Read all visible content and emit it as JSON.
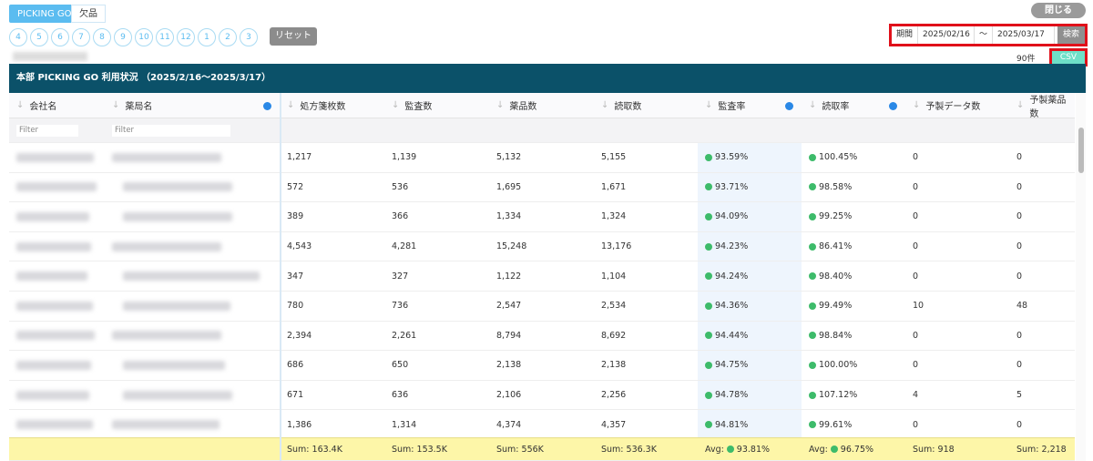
{
  "tabs": [
    {
      "label": "PICKING GO"
    },
    {
      "label": "欠品"
    }
  ],
  "months": [
    "4",
    "5",
    "6",
    "7",
    "8",
    "9",
    "10",
    "11",
    "12",
    "1",
    "2",
    "3"
  ],
  "reset_label": "リセット",
  "close_label": "閉じる",
  "period": {
    "label": "期間",
    "from": "2025/02/16",
    "sep": "〜",
    "to": "2025/03/17",
    "search_label": "検索"
  },
  "count": "90件",
  "csv_label": "CSV",
  "title": "本部 PICKING GO 利用状況 （2025/2/16〜2025/3/17）",
  "columns": [
    "会社名",
    "薬局名",
    "処方箋枚数",
    "監査数",
    "薬品数",
    "読取数",
    "監査率",
    "読取率",
    "予製データ数",
    "予製薬品数"
  ],
  "filter_placeholder": "Filter",
  "rows": [
    [
      "1,217",
      "1,139",
      "5,132",
      "5,155",
      "93.59%",
      "100.45%",
      "0",
      "0"
    ],
    [
      "572",
      "536",
      "1,695",
      "1,671",
      "93.71%",
      "98.58%",
      "0",
      "0"
    ],
    [
      "389",
      "366",
      "1,334",
      "1,324",
      "94.09%",
      "99.25%",
      "0",
      "0"
    ],
    [
      "4,543",
      "4,281",
      "15,248",
      "13,176",
      "94.23%",
      "86.41%",
      "0",
      "0"
    ],
    [
      "347",
      "327",
      "1,122",
      "1,104",
      "94.24%",
      "98.40%",
      "0",
      "0"
    ],
    [
      "780",
      "736",
      "2,547",
      "2,534",
      "94.36%",
      "99.49%",
      "10",
      "48"
    ],
    [
      "2,394",
      "2,261",
      "8,794",
      "8,692",
      "94.44%",
      "98.84%",
      "0",
      "0"
    ],
    [
      "686",
      "650",
      "2,138",
      "2,138",
      "94.75%",
      "100.00%",
      "0",
      "0"
    ],
    [
      "671",
      "636",
      "2,106",
      "2,256",
      "94.78%",
      "107.12%",
      "4",
      "5"
    ],
    [
      "1,386",
      "1,314",
      "4,374",
      "4,357",
      "94.81%",
      "99.61%",
      "0",
      "0"
    ]
  ],
  "footer": [
    "Sum: 163.4K",
    "Sum: 153.5K",
    "Sum: 556K",
    "Sum: 536.3K",
    "Avg:",
    "93.81%",
    "Avg:",
    "96.75%",
    "Sum: 918",
    "Sum: 2,218"
  ]
}
